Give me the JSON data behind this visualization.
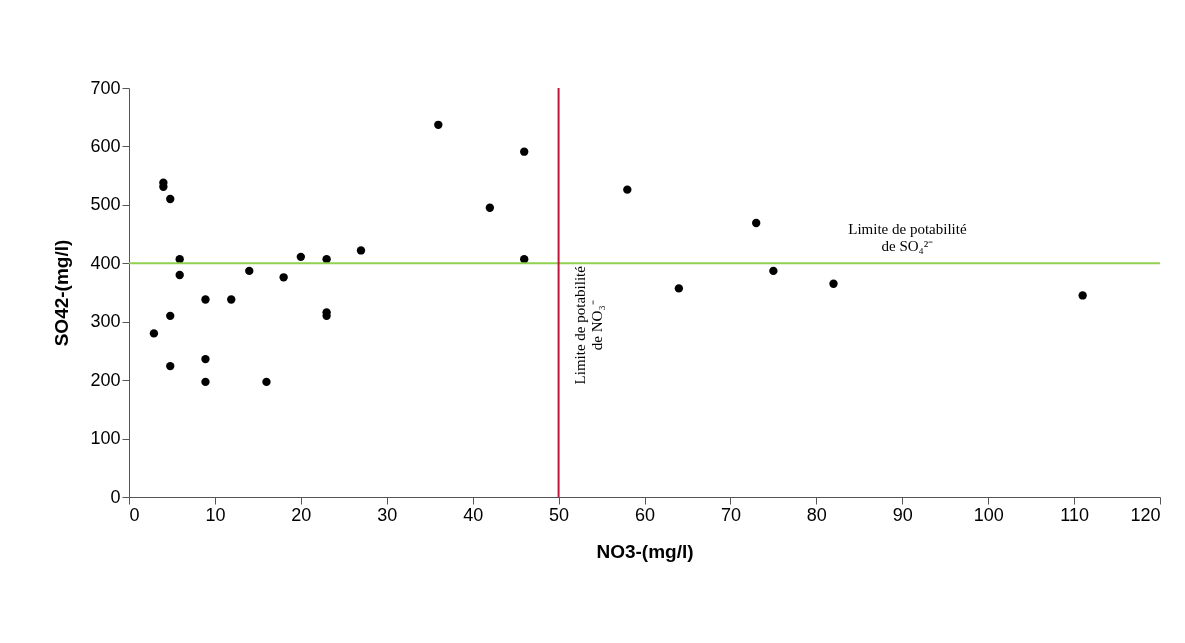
{
  "chart_data": {
    "type": "scatter",
    "xlabel": "NO3-(mg/l)",
    "ylabel": "SO42-(mg/l)",
    "x": [
      2.9,
      4,
      4,
      4.8,
      5.9,
      5.9,
      8.9,
      11.9,
      4.8,
      8.9,
      4.8,
      8.9,
      16,
      14,
      18,
      20,
      23,
      23,
      23,
      27,
      36,
      42,
      46,
      46,
      58,
      64,
      73,
      75,
      82,
      111
    ],
    "series": [
      {
        "color": "#000000",
        "values": [
          280,
          538,
          531,
          510,
          407,
          380,
          338,
          338,
          310,
          236,
          224,
          197,
          197,
          387,
          376,
          411,
          407,
          316,
          310,
          422,
          637,
          495,
          591,
          407,
          526,
          357,
          469,
          387,
          365,
          345
        ]
      }
    ],
    "marker": "circle",
    "xlim": [
      0,
      120
    ],
    "xticks": [
      0,
      10,
      20,
      30,
      40,
      50,
      60,
      70,
      80,
      90,
      100,
      110,
      120
    ],
    "ylim": [
      0,
      700
    ],
    "yticks": [
      0,
      100,
      200,
      300,
      400,
      500,
      600,
      700
    ],
    "grid": false,
    "ref_lines": [
      {
        "axis": "y",
        "value": 400,
        "label": "Limite de potabilité\nde SO₄²⁻",
        "color": "#92d050"
      },
      {
        "axis": "x",
        "value": 50,
        "label": "Limite de potabilité\nde NO₃⁻",
        "color": "#c0143c"
      }
    ]
  }
}
